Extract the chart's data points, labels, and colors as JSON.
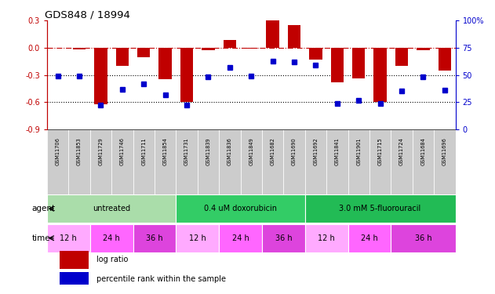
{
  "title": "GDS848 / 18994",
  "samples": [
    "GSM11706",
    "GSM11853",
    "GSM11729",
    "GSM11746",
    "GSM11711",
    "GSM11854",
    "GSM11731",
    "GSM11839",
    "GSM11836",
    "GSM11849",
    "GSM11682",
    "GSM11690",
    "GSM11692",
    "GSM11841",
    "GSM11901",
    "GSM11715",
    "GSM11724",
    "GSM11684",
    "GSM11696"
  ],
  "log_ratio": [
    0.0,
    -0.02,
    -0.62,
    -0.2,
    -0.1,
    -0.35,
    -0.6,
    -0.03,
    0.09,
    -0.01,
    0.3,
    0.25,
    -0.13,
    -0.38,
    -0.34,
    -0.6,
    -0.2,
    -0.03,
    -0.25
  ],
  "percentile": [
    49,
    49,
    22,
    37,
    42,
    32,
    22,
    48,
    57,
    49,
    63,
    62,
    59,
    24,
    27,
    24,
    35,
    48,
    36
  ],
  "ylim_left": [
    -0.9,
    0.3
  ],
  "ylim_right": [
    0,
    100
  ],
  "yticks_left": [
    -0.9,
    -0.6,
    -0.3,
    0.0,
    0.3
  ],
  "yticks_right": [
    0,
    25,
    50,
    75,
    100
  ],
  "hlines": [
    -0.6,
    -0.3
  ],
  "hline_zero": 0.0,
  "bar_color": "#C00000",
  "dot_color": "#0000CC",
  "background_color": "#ffffff",
  "agent_groups": [
    {
      "label": "untreated",
      "start": 0,
      "end": 5,
      "color": "#AADDAA"
    },
    {
      "label": "0.4 uM doxorubicin",
      "start": 6,
      "end": 11,
      "color": "#33CC66"
    },
    {
      "label": "3.0 mM 5-fluorouracil",
      "start": 12,
      "end": 18,
      "color": "#22BB55"
    }
  ],
  "time_groups": [
    {
      "label": "12 h",
      "start": 0,
      "end": 1,
      "color": "#FFAAFF"
    },
    {
      "label": "24 h",
      "start": 2,
      "end": 3,
      "color": "#FF66FF"
    },
    {
      "label": "36 h",
      "start": 4,
      "end": 5,
      "color": "#DD44DD"
    },
    {
      "label": "12 h",
      "start": 6,
      "end": 7,
      "color": "#FFAAFF"
    },
    {
      "label": "24 h",
      "start": 8,
      "end": 9,
      "color": "#FF66FF"
    },
    {
      "label": "36 h",
      "start": 10,
      "end": 11,
      "color": "#DD44DD"
    },
    {
      "label": "12 h",
      "start": 12,
      "end": 13,
      "color": "#FFAAFF"
    },
    {
      "label": "24 h",
      "start": 14,
      "end": 15,
      "color": "#FF66FF"
    },
    {
      "label": "36 h",
      "start": 16,
      "end": 18,
      "color": "#DD44DD"
    }
  ],
  "sample_strip_color": "#CCCCCC",
  "legend_bar_label": "log ratio",
  "legend_dot_label": "percentile rank within the sample",
  "agent_label": "agent",
  "time_label": "time"
}
